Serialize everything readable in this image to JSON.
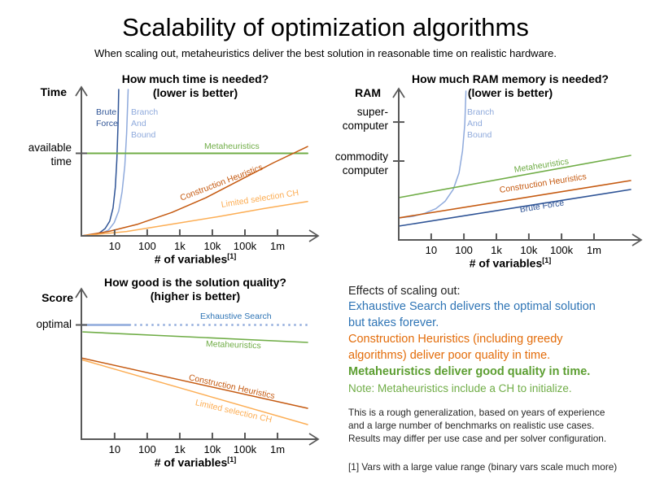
{
  "colors": {
    "axis": "#595959",
    "dark_blue": "#2F5496",
    "light_blue": "#8FAADC",
    "mid_blue": "#2E74B5",
    "green": "#70AD47",
    "green_bold": "#5C9E31",
    "dark_orange": "#C55A11",
    "light_orange": "#FCAE55",
    "text_orange": "#E36C0A",
    "text_dark": "#262626"
  },
  "header": {
    "title": "Scalability of optimization algorithms",
    "subtitle": "When scaling out, metaheuristics deliver the best solution in reasonable time on realistic hardware."
  },
  "chart_data": [
    {
      "type": "line",
      "title": "How much time is needed?",
      "qualifier": "(lower is better)",
      "y_axis": "Time",
      "x_label": "# of variables",
      "footnote_ref": "[1]",
      "x_scale": "log",
      "grid": false,
      "x_ticks": [
        {
          "label": "10",
          "pos": 0.147
        },
        {
          "label": "100",
          "pos": 0.291
        },
        {
          "label": "1k",
          "pos": 0.435
        },
        {
          "label": "10k",
          "pos": 0.579
        },
        {
          "label": "100k",
          "pos": 0.723
        },
        {
          "label": "1m",
          "pos": 0.867
        }
      ],
      "y_refs": [
        {
          "label": "available time",
          "pos": 0.564
        }
      ],
      "series": [
        {
          "name": "Brute Force",
          "color": "dark_blue",
          "width": 1.5,
          "points": [
            [
              0,
              0
            ],
            [
              0.045,
              0.006
            ],
            [
              0.08,
              0.02
            ],
            [
              0.105,
              0.05
            ],
            [
              0.125,
              0.1
            ],
            [
              0.14,
              0.19
            ],
            [
              0.15,
              0.33
            ],
            [
              0.157,
              0.52
            ],
            [
              0.162,
              0.75
            ],
            [
              0.165,
              1
            ]
          ]
        },
        {
          "name": "Branch And Bound",
          "color": "light_blue",
          "width": 1.5,
          "points": [
            [
              0,
              0
            ],
            [
              0.05,
              0.005
            ],
            [
              0.09,
              0.017
            ],
            [
              0.12,
              0.04
            ],
            [
              0.145,
              0.09
            ],
            [
              0.165,
              0.17
            ],
            [
              0.18,
              0.3
            ],
            [
              0.192,
              0.48
            ],
            [
              0.2,
              0.7
            ],
            [
              0.207,
              1
            ]
          ]
        },
        {
          "name": "Metaheuristics",
          "color": "green",
          "width": 2,
          "points": [
            [
              0,
              0.564
            ],
            [
              1,
              0.564
            ]
          ]
        },
        {
          "name": "Construction Heuristics",
          "color": "dark_orange",
          "width": 1.5,
          "points": [
            [
              0,
              0
            ],
            [
              0.12,
              0.03
            ],
            [
              0.25,
              0.08
            ],
            [
              0.4,
              0.16
            ],
            [
              0.55,
              0.26
            ],
            [
              0.7,
              0.38
            ],
            [
              0.85,
              0.5
            ],
            [
              1,
              0.61
            ]
          ]
        },
        {
          "name": "Limited selection CH",
          "color": "light_orange",
          "width": 1.5,
          "points": [
            [
              0,
              0
            ],
            [
              0.2,
              0.03
            ],
            [
              0.4,
              0.08
            ],
            [
              0.6,
              0.13
            ],
            [
              0.8,
              0.185
            ],
            [
              1,
              0.235
            ]
          ]
        }
      ]
    },
    {
      "type": "line",
      "title": "How much RAM memory is needed?",
      "qualifier": "(lower is better)",
      "y_axis": "RAM",
      "x_label": "# of variables",
      "footnote_ref": "[1]",
      "x_scale": "log",
      "grid": false,
      "x_ticks": [
        {
          "label": "10",
          "pos": 0.14
        },
        {
          "label": "100",
          "pos": 0.281
        },
        {
          "label": "1k",
          "pos": 0.421
        },
        {
          "label": "10k",
          "pos": 0.561
        },
        {
          "label": "100k",
          "pos": 0.702
        },
        {
          "label": "1m",
          "pos": 0.842
        }
      ],
      "y_refs": [
        {
          "label": "super-computer",
          "pos": 0.792
        },
        {
          "label": "commodity computer",
          "pos": 0.53
        }
      ],
      "series": [
        {
          "name": "Branch And Bound",
          "color": "light_blue",
          "width": 1.5,
          "points": [
            [
              0,
              0.148
            ],
            [
              0.06,
              0.158
            ],
            [
              0.11,
              0.178
            ],
            [
              0.16,
              0.21
            ],
            [
              0.2,
              0.26
            ],
            [
              0.235,
              0.34
            ],
            [
              0.26,
              0.45
            ],
            [
              0.275,
              0.6
            ],
            [
              0.285,
              0.78
            ],
            [
              0.29,
              1
            ]
          ]
        },
        {
          "name": "Metaheuristics",
          "color": "green",
          "width": 1.6,
          "points": [
            [
              0,
              0.284
            ],
            [
              1,
              0.568
            ]
          ]
        },
        {
          "name": "Construction Heuristics",
          "color": "dark_orange",
          "width": 1.6,
          "points": [
            [
              0,
              0.148
            ],
            [
              1,
              0.399
            ]
          ]
        },
        {
          "name": "Brute Force",
          "color": "dark_blue",
          "width": 1.6,
          "points": [
            [
              0,
              0.093
            ],
            [
              1,
              0.339
            ]
          ]
        }
      ]
    },
    {
      "type": "line",
      "title": "How good is the solution quality?",
      "qualifier": "(higher is better)",
      "y_axis": "Score",
      "x_label": "# of variables",
      "footnote_ref": "[1]",
      "x_scale": "log",
      "grid": false,
      "x_ticks": [
        {
          "label": "10",
          "pos": 0.147
        },
        {
          "label": "100",
          "pos": 0.291
        },
        {
          "label": "1k",
          "pos": 0.435
        },
        {
          "label": "10k",
          "pos": 0.579
        },
        {
          "label": "100k",
          "pos": 0.723
        },
        {
          "label": "1m",
          "pos": 0.867
        }
      ],
      "y_refs": [
        {
          "label": "optimal",
          "pos": 0.772
        }
      ],
      "series": [
        {
          "name": "Exhaustive Search",
          "color": "light_blue",
          "width": 2.4,
          "points": [
            [
              0,
              0.772
            ],
            [
              0.216,
              0.772
            ]
          ]
        },
        {
          "name": "",
          "color": "light_blue",
          "width": 2.4,
          "style": "dotted",
          "points": [
            [
              0.235,
              0.772
            ],
            [
              1,
              0.772
            ]
          ]
        },
        {
          "name": "Metaheuristics",
          "color": "green",
          "width": 1.6,
          "points": [
            [
              0.007,
              0.725
            ],
            [
              1,
              0.654
            ]
          ]
        },
        {
          "name": "Construction Heuristics",
          "color": "dark_orange",
          "width": 1.5,
          "points": [
            [
              0,
              0.549
            ],
            [
              1,
              0.209
            ]
          ]
        },
        {
          "name": "Limited selection CH",
          "color": "light_orange",
          "width": 1.5,
          "points": [
            [
              0,
              0.538
            ],
            [
              1,
              0.099
            ]
          ]
        }
      ]
    }
  ],
  "effects": {
    "heading": "Effects of scaling out:",
    "exhaustive_lines": [
      "Exhaustive Search delivers the optimal solution",
      "but takes forever."
    ],
    "construction_lines": [
      "Construction Heuristics (including greedy",
      "algorithms) deliver poor quality in time."
    ],
    "metaheuristics_line": "Metaheuristics deliver good quality in time.",
    "note": "Note: Metaheuristics include a CH to initialize."
  },
  "disclaimer_lines": [
    "This is a rough generalization, based on years of experience",
    "and a large number of benchmarks on realistic use cases.",
    "Results may differ per use case and per solver configuration."
  ],
  "footnote": "[1] Vars with a large value range (binary vars scale much more)"
}
